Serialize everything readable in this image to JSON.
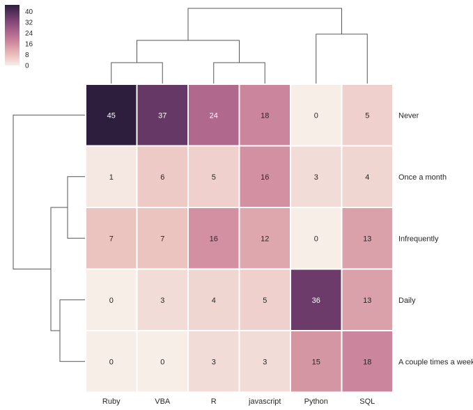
{
  "chart_data": {
    "type": "heatmap",
    "title": "",
    "xlabel": "",
    "ylabel": "",
    "columns": [
      "Ruby",
      "VBA",
      "R",
      "javascript",
      "Python",
      "SQL"
    ],
    "rows": [
      "Never",
      "Once a month",
      "Infrequently",
      "Daily",
      "A couple times a week"
    ],
    "values": [
      [
        45,
        37,
        24,
        18,
        0,
        5
      ],
      [
        1,
        6,
        5,
        16,
        3,
        4
      ],
      [
        7,
        7,
        16,
        12,
        0,
        13
      ],
      [
        0,
        3,
        4,
        5,
        36,
        13
      ],
      [
        0,
        0,
        3,
        3,
        15,
        18
      ]
    ],
    "colorbar": {
      "ticks": [
        "40",
        "32",
        "24",
        "16",
        "8",
        "0"
      ],
      "tick_values": [
        40,
        32,
        24,
        16,
        8,
        0
      ],
      "vmin": 0,
      "vmax": 45
    },
    "colors": {
      "low": "#f7eee8",
      "mid_low": "#e8b8b5",
      "mid": "#c47896",
      "mid_high": "#7d4275",
      "high": "#2d1e3e",
      "text_dark": "#262626",
      "text_light": "#ffffff",
      "dendrogram": "#555555"
    },
    "dendrogram": {
      "columns": "top",
      "rows": "left"
    },
    "grid": false,
    "legend": "top-left"
  }
}
